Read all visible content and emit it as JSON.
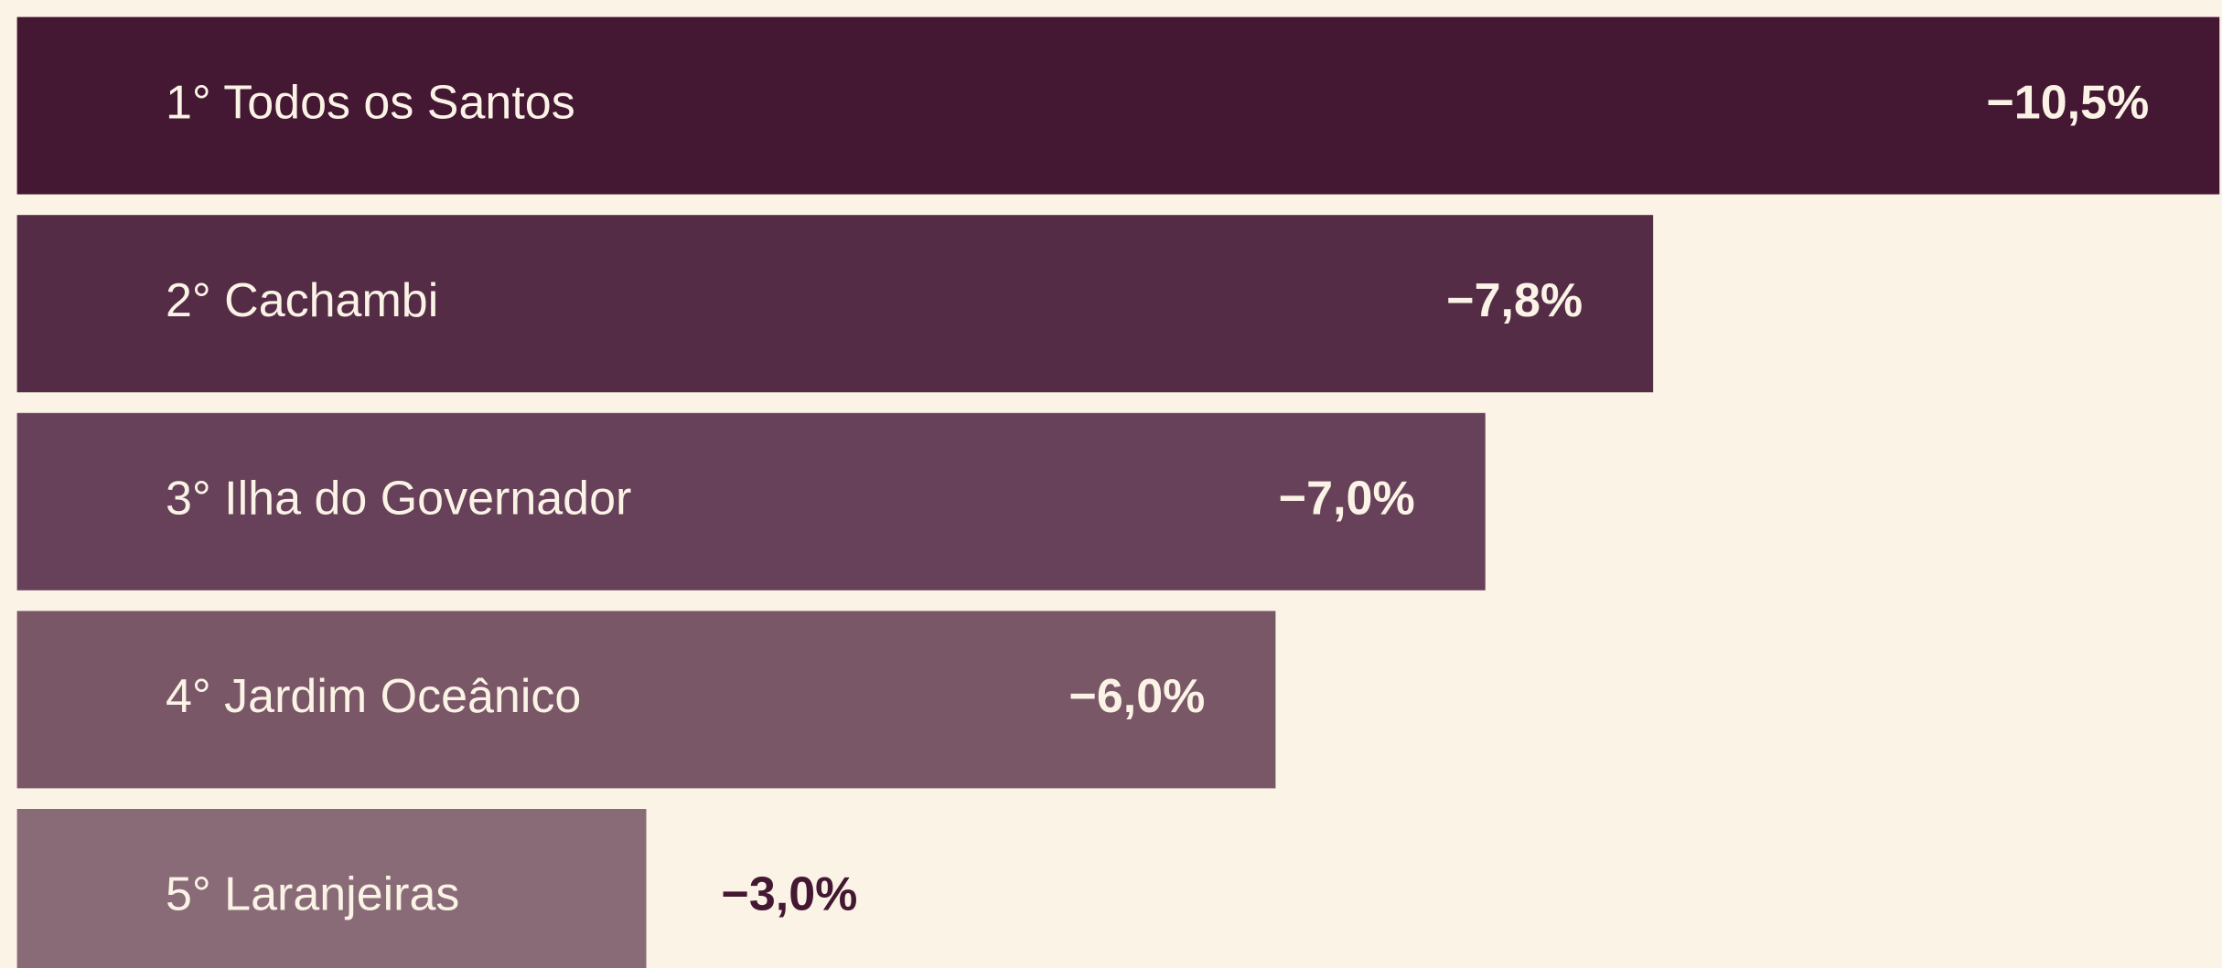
{
  "chart_data": {
    "type": "bar",
    "orientation": "horizontal",
    "categories": [
      "1° Todos os Santos",
      "2° Cachambi",
      "3° Ilha do Governador",
      "4° Jardim Oceânico",
      "5° Laranjeiras"
    ],
    "values": [
      -10.5,
      -7.8,
      -7.0,
      -6.0,
      -3.0
    ],
    "value_labels": [
      "−10,5%",
      "−7,8%",
      "−7,0%",
      "−6,0%",
      "−3,0%"
    ],
    "colors": [
      "#441832",
      "#552c46",
      "#674159",
      "#7a5767",
      "#896b78"
    ]
  }
}
